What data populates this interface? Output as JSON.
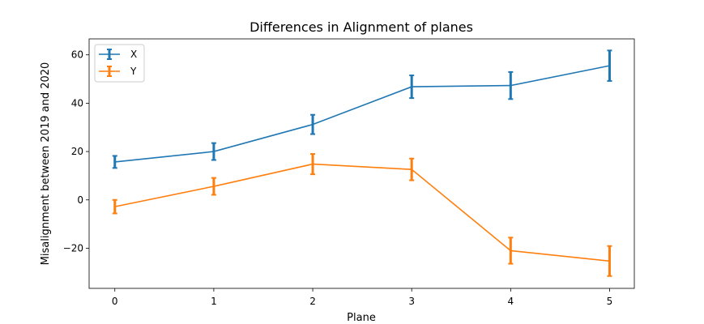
{
  "chart_data": {
    "type": "line",
    "title": "Differences in Alignment of planes",
    "xlabel": "Plane",
    "ylabel": "Misalignment between 2019 and 2020",
    "x": [
      0,
      1,
      2,
      3,
      4,
      5
    ],
    "xticks": [
      "0",
      "1",
      "2",
      "3",
      "4",
      "5"
    ],
    "yticks": [
      "−20",
      "0",
      "20",
      "40",
      "60"
    ],
    "ytick_values": [
      -20,
      0,
      20,
      40,
      60
    ],
    "xlim": [
      -0.26,
      5.25
    ],
    "ylim": [
      -36.6,
      66.6
    ],
    "grid": false,
    "legend_position": "top-left",
    "series": [
      {
        "name": "X",
        "color": "#1f77b4",
        "values": [
          15.7,
          20.0,
          31.2,
          46.8,
          47.3,
          55.5
        ],
        "errors": [
          2.5,
          3.5,
          4.0,
          4.7,
          5.6,
          6.3
        ]
      },
      {
        "name": "Y",
        "color": "#ff7f0e",
        "values": [
          -2.8,
          5.6,
          14.8,
          12.6,
          -21.0,
          -25.3
        ],
        "errors": [
          2.8,
          3.5,
          4.2,
          4.5,
          5.4,
          6.2
        ]
      }
    ]
  }
}
